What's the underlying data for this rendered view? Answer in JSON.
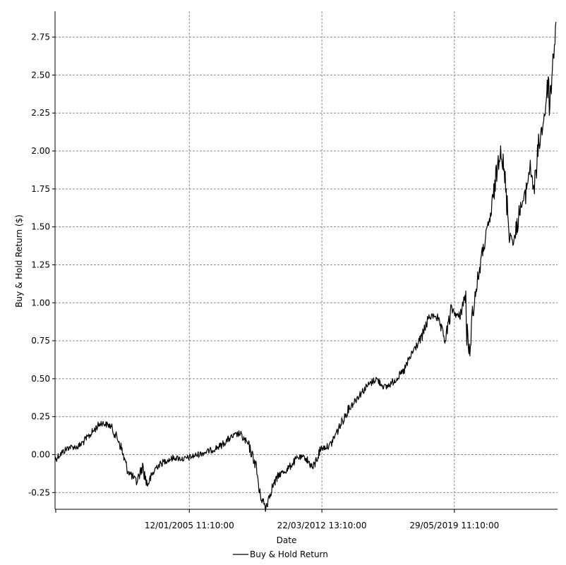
{
  "chart_data": {
    "type": "line",
    "xlabel": "Date",
    "ylabel": "Buy & Hold Return ($)",
    "legend": "bottom-center",
    "grid": true,
    "xlim": [
      "1997-10-01",
      "2025-01-01"
    ],
    "ylim": [
      -0.36,
      2.92
    ],
    "y_ticks": [
      -0.25,
      0.0,
      0.25,
      0.5,
      0.75,
      1.0,
      1.25,
      1.5,
      1.75,
      2.0,
      2.25,
      2.5,
      2.75
    ],
    "y_tick_labels": [
      "-0.25",
      "0.00",
      "0.25",
      "0.50",
      "0.75",
      "1.00",
      "1.25",
      "1.50",
      "1.75",
      "2.00",
      "2.25",
      "2.50",
      "2.75"
    ],
    "x_ticks": [
      "2005-01-12",
      "2012-03-22",
      "2019-05-29"
    ],
    "x_tick_labels": [
      "12/01/2005 11:10:00",
      "22/03/2012 13:10:00",
      "29/05/2019 11:10:00"
    ],
    "series": [
      {
        "name": "Buy & Hold Return",
        "color": "#000000",
        "x": [
          "1997-10-01",
          "1998-01-01",
          "1998-07-01",
          "1999-01-01",
          "1999-07-01",
          "2000-01-01",
          "2000-04-01",
          "2000-10-01",
          "2001-04-01",
          "2001-09-01",
          "2002-03-01",
          "2002-07-01",
          "2002-10-01",
          "2003-04-01",
          "2003-10-01",
          "2004-04-01",
          "2004-10-01",
          "2005-04-01",
          "2005-10-01",
          "2006-04-01",
          "2006-10-01",
          "2007-04-01",
          "2007-10-01",
          "2008-04-01",
          "2008-09-01",
          "2008-11-01",
          "2009-03-01",
          "2009-07-01",
          "2009-12-01",
          "2010-05-01",
          "2010-12-01",
          "2011-05-01",
          "2011-10-01",
          "2012-03-01",
          "2012-09-01",
          "2013-03-01",
          "2013-09-01",
          "2014-03-01",
          "2014-09-01",
          "2015-03-01",
          "2015-09-01",
          "2016-02-01",
          "2016-09-01",
          "2017-03-01",
          "2017-09-01",
          "2018-01-01",
          "2018-06-01",
          "2018-12-01",
          "2019-04-01",
          "2019-09-01",
          "2020-01-01",
          "2020-03-01",
          "2020-06-01",
          "2020-09-01",
          "2020-12-01",
          "2021-06-01",
          "2021-12-01",
          "2022-03-01",
          "2022-06-01",
          "2022-09-01",
          "2022-12-01",
          "2023-04-01",
          "2023-07-01",
          "2023-10-01",
          "2024-01-01",
          "2024-04-01",
          "2024-07-01",
          "2024-08-01",
          "2024-10-01",
          "2024-12-01"
        ],
        "values": [
          -0.03,
          0.0,
          0.05,
          0.05,
          0.11,
          0.18,
          0.21,
          0.19,
          0.08,
          -0.1,
          -0.18,
          -0.08,
          -0.2,
          -0.08,
          -0.04,
          -0.02,
          -0.03,
          -0.01,
          0.01,
          0.03,
          0.06,
          0.11,
          0.14,
          0.06,
          -0.08,
          -0.25,
          -0.35,
          -0.22,
          -0.13,
          -0.1,
          -0.02,
          -0.02,
          -0.09,
          0.04,
          0.06,
          0.18,
          0.3,
          0.38,
          0.45,
          0.5,
          0.44,
          0.48,
          0.55,
          0.68,
          0.78,
          0.9,
          0.92,
          0.75,
          0.96,
          0.9,
          1.05,
          0.62,
          0.95,
          1.15,
          1.32,
          1.6,
          2.05,
          1.78,
          1.45,
          1.4,
          1.6,
          1.7,
          1.9,
          1.75,
          2.05,
          2.2,
          2.45,
          2.3,
          2.6,
          2.85
        ]
      }
    ]
  }
}
